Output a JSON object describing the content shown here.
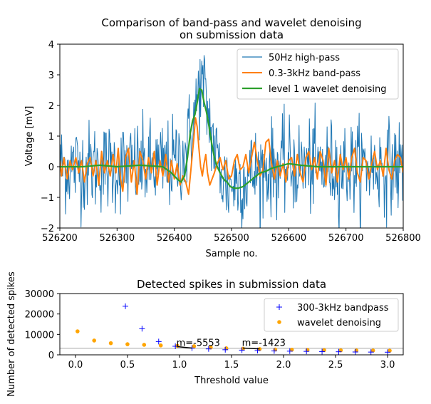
{
  "chart_data": [
    {
      "type": "line",
      "title": "Comparison of band-pass and wavelet denoising",
      "subtitle": "on submission data",
      "xlabel": "Sample no.",
      "ylabel": "Voltage [mV]",
      "xlim": [
        526200,
        526800
      ],
      "ylim": [
        -2,
        4
      ],
      "xticks": [
        526200,
        526300,
        526400,
        526500,
        526600,
        526700,
        526800
      ],
      "yticks": [
        -2,
        -1,
        0,
        1,
        2,
        3,
        4
      ],
      "grid": false,
      "legend_position": "top-right",
      "series": [
        {
          "name": "50Hz high-pass",
          "color": "#1f77b4",
          "noise_sd": 0.75,
          "x": [
            526200,
            526380,
            526400,
            526420,
            526435,
            526445,
            526452,
            526460,
            526475,
            526490,
            526510,
            526540,
            526580,
            526800
          ],
          "y": [
            0.0,
            0.0,
            0.1,
            0.5,
            1.6,
            2.7,
            2.5,
            1.6,
            0.2,
            -0.6,
            -0.5,
            -0.2,
            0.0,
            0.0
          ]
        },
        {
          "name": "0.3-3kHz band-pass",
          "color": "#ff7f0e",
          "x": [
            526200,
            526203,
            526207,
            526213,
            526218,
            526222,
            526228,
            526233,
            526238,
            526243,
            526248,
            526253,
            526258,
            526263,
            526268,
            526273,
            526278,
            526283,
            526288,
            526293,
            526298,
            526302,
            526306,
            526310,
            526315,
            526320,
            526325,
            526330,
            526335,
            526340,
            526345,
            526350,
            526355,
            526360,
            526365,
            526370,
            526375,
            526380,
            526385,
            526390,
            526395,
            526400,
            526405,
            526410,
            526415,
            526420,
            526425,
            526428,
            526431,
            526434,
            526437,
            526440,
            526443,
            526446,
            526449,
            526452,
            526455,
            526458,
            526462,
            526466,
            526470,
            526475,
            526480,
            526485,
            526490,
            526495,
            526500,
            526505,
            526510,
            526515,
            526520,
            526525,
            526530,
            526535,
            526540,
            526545,
            526550,
            526555,
            526560,
            526565,
            526570,
            526575,
            526580,
            526585,
            526590,
            526595,
            526600,
            526605,
            526610,
            526615,
            526620,
            526625,
            526630,
            526635,
            526640,
            526645,
            526650,
            526655,
            526660,
            526665,
            526670,
            526675,
            526680,
            526685,
            526690,
            526695,
            526700,
            526705,
            526710,
            526715,
            526720,
            526725,
            526730,
            526735,
            526740,
            526745,
            526750,
            526755,
            526760,
            526765,
            526770,
            526775,
            526780,
            526785,
            526790,
            526795,
            526800
          ],
          "y": [
            0.2,
            -0.3,
            0.3,
            -0.4,
            0.2,
            -0.1,
            0.3,
            -0.2,
            0.2,
            -0.5,
            0.1,
            0.3,
            -0.3,
            0.2,
            -0.6,
            0.5,
            -0.2,
            0.2,
            -0.3,
            0.4,
            -0.2,
            0.6,
            -0.4,
            -0.8,
            0.3,
            0.6,
            -0.5,
            0.2,
            -0.9,
            0.5,
            0.2,
            -0.4,
            0.3,
            -0.2,
            0.5,
            -0.6,
            0.2,
            -0.3,
            0.4,
            -0.5,
            0.2,
            -0.4,
            0.1,
            -0.6,
            -0.3,
            -0.5,
            -0.9,
            -0.3,
            0.3,
            0.9,
            1.6,
            1.3,
            0.6,
            0.0,
            -0.3,
            0.1,
            0.4,
            -0.2,
            -0.6,
            -0.4,
            -0.2,
            0.1,
            0.3,
            -0.1,
            0.2,
            -0.4,
            -0.3,
            0.2,
            0.4,
            -0.1,
            0.0,
            0.4,
            -0.2,
            0.3,
            0.8,
            0.2,
            -0.3,
            -0.1,
            0.8,
            0.9,
            0.1,
            -0.4,
            0.2,
            -0.3,
            0.1,
            -0.5,
            0.2,
            0.3,
            -0.3,
            0.4,
            -0.2,
            -0.5,
            0.3,
            0.5,
            -0.1,
            0.3,
            -0.4,
            0.5,
            0.2,
            -0.6,
            0.6,
            -0.2,
            0.2,
            -0.5,
            0.4,
            -0.1,
            0.3,
            -0.4,
            0.3,
            0.6,
            -0.2,
            -0.5,
            0.3,
            0.2,
            -0.4,
            0.1,
            0.5,
            -0.1,
            0.2,
            -0.3,
            0.6,
            -0.1,
            -0.4,
            0.2,
            0.4,
            0.3,
            -0.2
          ]
        },
        {
          "name": "level 1 wavelet denoising",
          "color": "#2ca02c",
          "x": [
            526200,
            526240,
            526270,
            526300,
            526340,
            526380,
            526395,
            526405,
            526412,
            526418,
            526423,
            526428,
            526432,
            526436,
            526440,
            526444,
            526448,
            526452,
            526456,
            526460,
            526465,
            526470,
            526475,
            526480,
            526486,
            526492,
            526498,
            526505,
            526512,
            526520,
            526530,
            526540,
            526550,
            526560,
            526570,
            526580,
            526590,
            526600,
            526620,
            526650,
            526680,
            526720,
            526760,
            526800
          ],
          "y": [
            0.0,
            0.0,
            0.05,
            0.0,
            0.05,
            0.0,
            -0.2,
            -0.4,
            -0.5,
            -0.3,
            0.3,
            1.1,
            1.5,
            1.7,
            2.1,
            2.55,
            2.5,
            2.1,
            1.8,
            1.4,
            0.8,
            0.3,
            0.0,
            -0.2,
            -0.4,
            -0.5,
            -0.65,
            -0.7,
            -0.7,
            -0.65,
            -0.5,
            -0.35,
            -0.2,
            -0.15,
            -0.05,
            0.0,
            0.05,
            0.1,
            0.05,
            0.0,
            0.0,
            0.0,
            0.0,
            0.0
          ]
        }
      ]
    },
    {
      "type": "scatter",
      "title": "Detected spikes in submission data",
      "xlabel": "Threshold value",
      "ylabel": "Number of detected spikes",
      "xlim": [
        -0.15,
        3.15
      ],
      "ylim": [
        0,
        30000
      ],
      "xticks": [
        0.0,
        0.5,
        1.0,
        1.5,
        2.0,
        2.5,
        3.0
      ],
      "xtick_labels": [
        "0.0",
        "0.5",
        "1.0",
        "1.5",
        "2.0",
        "2.5",
        "3.0"
      ],
      "yticks": [
        0,
        10000,
        20000,
        30000
      ],
      "grid": false,
      "legend_position": "top-right",
      "hline": 3200,
      "series": [
        {
          "name": "300-3kHz bandpass",
          "color": "#0000ff",
          "marker": "+",
          "x": [
            0.48,
            0.64,
            0.8,
            0.96,
            1.12,
            1.28,
            1.44,
            1.6,
            1.75,
            1.91,
            2.06,
            2.22,
            2.37,
            2.53,
            2.69,
            2.84,
            3.0
          ],
          "y": [
            23800,
            12800,
            6500,
            4200,
            3300,
            2900,
            2500,
            2300,
            2100,
            1900,
            1800,
            1700,
            1600,
            1500,
            1400,
            1350,
            1300
          ]
        },
        {
          "name": "wavelet denoising",
          "color": "#ffa500",
          "marker": "o",
          "x": [
            0.02,
            0.18,
            0.34,
            0.5,
            0.66,
            0.82,
            0.98,
            1.14,
            1.3,
            1.45,
            1.61,
            1.77,
            1.92,
            2.08,
            2.23,
            2.39,
            2.55,
            2.7,
            2.86,
            3.02
          ],
          "y": [
            11500,
            7000,
            5700,
            5200,
            4900,
            4600,
            4400,
            4200,
            3600,
            3200,
            3000,
            2800,
            2600,
            2500,
            2400,
            2300,
            2200,
            2150,
            2100,
            2050
          ]
        }
      ],
      "annotations": [
        {
          "text": "m=-5553",
          "x": 0.97,
          "y": 4400,
          "slope_line": [
            [
              0.98,
              4000
            ],
            [
              1.12,
              3300
            ]
          ]
        },
        {
          "text": "m=-1423",
          "x": 1.6,
          "y": 4400,
          "slope_line": [
            [
              1.61,
              3300
            ],
            [
              1.77,
              2900
            ]
          ]
        }
      ]
    }
  ]
}
